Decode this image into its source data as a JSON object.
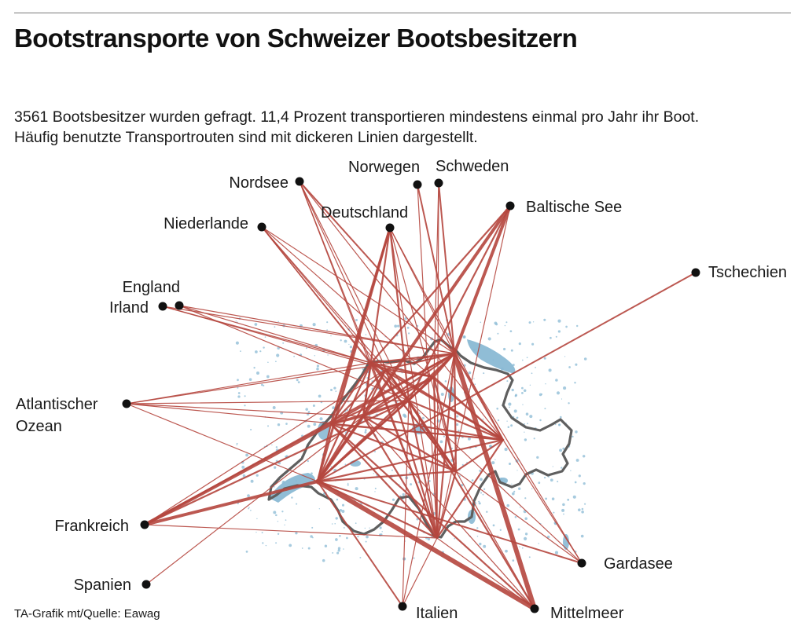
{
  "title": "Bootstransporte von Schweizer Bootsbesitzern",
  "subtitle": {
    "line1": "3561 Bootsbesitzer wurden gefragt. 11,4 Prozent transportieren mindestens einmal pro Jahr ihr Boot.",
    "line2": "Häufig benutzte Transportrouten sind mit dickeren Linien dargestellt."
  },
  "source": "TA-Grafik mt/Quelle: Eawag",
  "colors": {
    "route": "#b5473f",
    "border": "#5f5f5f",
    "water": "#8ab9d4",
    "point": "#111111"
  },
  "destinations": [
    {
      "id": "nordsee",
      "label": "Nordsee"
    },
    {
      "id": "norwegen",
      "label": "Norwegen"
    },
    {
      "id": "schweden",
      "label": "Schweden"
    },
    {
      "id": "niederlande",
      "label": "Niederlande"
    },
    {
      "id": "deutschland",
      "label": "Deutschland"
    },
    {
      "id": "baltische-see",
      "label": "Baltische See"
    },
    {
      "id": "tschechien",
      "label": "Tschechien"
    },
    {
      "id": "england",
      "label": "England"
    },
    {
      "id": "irland",
      "label": "Irland"
    },
    {
      "id": "atlantik",
      "label": "Atlantischer",
      "label2": "Ozean"
    },
    {
      "id": "frankreich",
      "label": "Frankreich"
    },
    {
      "id": "spanien",
      "label": "Spanien"
    },
    {
      "id": "italien",
      "label": "Italien"
    },
    {
      "id": "mittelmeer",
      "label": "Mittelmeer"
    },
    {
      "id": "gardasee",
      "label": "Gardasee"
    }
  ]
}
